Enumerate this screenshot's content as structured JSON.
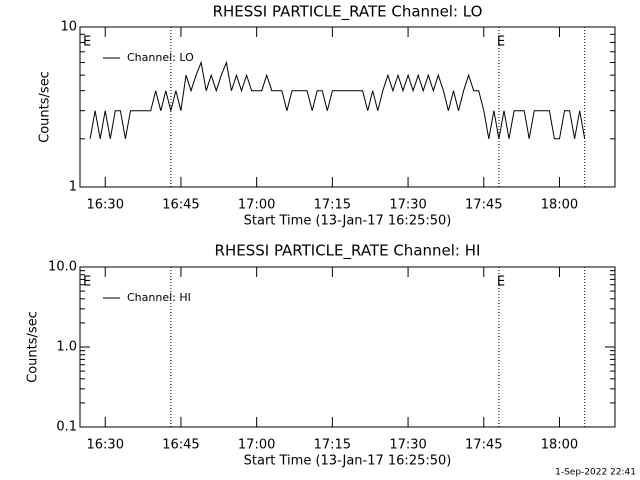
{
  "chart_data": [
    {
      "type": "line",
      "title": "RHESSI PARTICLE_RATE Channel: LO",
      "xlabel": "Start Time (13-Jan-17 16:25:50)",
      "ylabel": "Counts/sec",
      "x": [
        "16:27",
        "16:28",
        "16:29",
        "16:30",
        "16:31",
        "16:32",
        "16:33",
        "16:34",
        "16:35",
        "16:36",
        "16:37",
        "16:38",
        "16:39",
        "16:40",
        "16:41",
        "16:42",
        "16:43",
        "16:44",
        "16:45",
        "16:46",
        "16:47",
        "16:48",
        "16:49",
        "16:50",
        "16:51",
        "16:52",
        "16:53",
        "16:54",
        "16:55",
        "16:56",
        "16:57",
        "16:58",
        "16:59",
        "17:00",
        "17:01",
        "17:02",
        "17:03",
        "17:04",
        "17:05",
        "17:06",
        "17:07",
        "17:08",
        "17:09",
        "17:10",
        "17:11",
        "17:12",
        "17:13",
        "17:14",
        "17:15",
        "17:16",
        "17:17",
        "17:18",
        "17:19",
        "17:20",
        "17:21",
        "17:22",
        "17:23",
        "17:24",
        "17:25",
        "17:26",
        "17:27",
        "17:28",
        "17:29",
        "17:30",
        "17:31",
        "17:32",
        "17:33",
        "17:34",
        "17:35",
        "17:36",
        "17:37",
        "17:38",
        "17:39",
        "17:40",
        "17:41",
        "17:42",
        "17:43",
        "17:44",
        "17:45",
        "17:46",
        "17:47",
        "17:48",
        "17:49",
        "17:50",
        "17:51",
        "17:52",
        "17:53",
        "17:54",
        "17:55",
        "17:56",
        "17:57",
        "17:58",
        "17:59",
        "18:00",
        "18:01",
        "18:02",
        "18:03",
        "18:04",
        "18:05"
      ],
      "series": [
        {
          "name": "Channel: LO",
          "color": "#000000",
          "values": [
            2,
            3,
            2,
            3,
            2,
            3,
            3,
            2,
            3,
            3,
            3,
            3,
            3,
            4,
            3,
            4,
            3,
            4,
            3,
            5,
            4,
            5,
            6,
            4,
            5,
            4,
            5,
            6,
            4,
            5,
            4,
            5,
            4,
            4,
            4,
            5,
            4,
            4,
            4,
            3,
            4,
            4,
            4,
            4,
            3,
            4,
            4,
            3,
            4,
            4,
            4,
            4,
            4,
            4,
            4,
            3,
            4,
            3,
            4,
            5,
            4,
            5,
            4,
            5,
            4,
            5,
            4,
            5,
            4,
            5,
            4,
            3,
            4,
            3,
            4,
            5,
            4,
            4,
            3,
            2,
            3,
            2,
            3,
            2,
            3,
            3,
            3,
            2,
            3,
            3,
            3,
            3,
            2,
            2,
            3,
            3,
            2,
            3,
            2
          ]
        }
      ],
      "xlim": [
        "16:25",
        "18:11"
      ],
      "xticks": [
        "16:30",
        "16:45",
        "17:00",
        "17:15",
        "17:30",
        "17:45",
        "18:00"
      ],
      "ylim": [
        1,
        10
      ],
      "yticks": [
        1,
        10
      ],
      "log_y": true,
      "legend": "upper left",
      "vlines": [
        "16:43",
        "17:48",
        "18:05"
      ],
      "annotations": [
        {
          "text": "E",
          "x": "16:26"
        },
        {
          "text": "E",
          "x": "17:48"
        }
      ]
    },
    {
      "type": "line",
      "title": "RHESSI PARTICLE_RATE Channel: HI",
      "xlabel": "Start Time (13-Jan-17 16:25:50)",
      "ylabel": "Counts/sec",
      "x": [],
      "series": [
        {
          "name": "Channel: HI",
          "color": "#000000",
          "values": []
        }
      ],
      "xlim": [
        "16:25",
        "18:11"
      ],
      "xticks": [
        "16:30",
        "16:45",
        "17:00",
        "17:15",
        "17:30",
        "17:45",
        "18:00"
      ],
      "ylim": [
        0.1,
        10
      ],
      "yticks": [
        0.1,
        {
          "value": 1,
          "label": "1.0"
        },
        {
          "value": 10,
          "label": "10.0"
        }
      ],
      "log_y": true,
      "legend": "upper left",
      "vlines": [
        "16:43",
        "17:48",
        "18:05"
      ],
      "annotations": [
        {
          "text": "E",
          "x": "16:26"
        },
        {
          "text": "E",
          "x": "17:48"
        }
      ]
    }
  ],
  "footer": "1-Sep-2022 22:41"
}
